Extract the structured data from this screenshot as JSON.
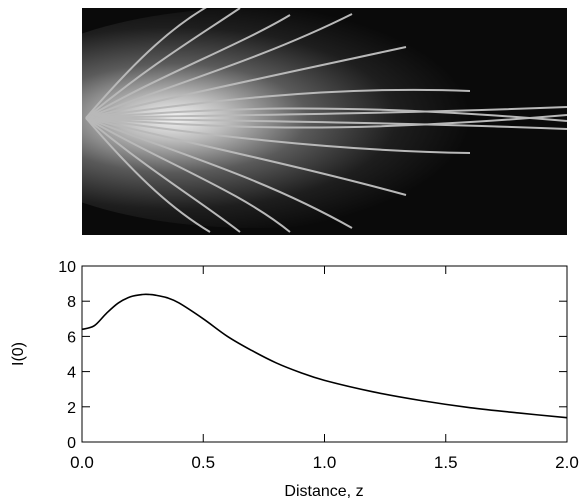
{
  "image_panel": {
    "description_colormap": "grayscale",
    "ray_count": 16
  },
  "chart_data": {
    "type": "line",
    "title": "",
    "xlabel": "Distance, z",
    "ylabel": "I(0)",
    "xlim": [
      0,
      2
    ],
    "ylim": [
      0,
      10
    ],
    "x_ticks": [
      "0.0",
      "0.5",
      "1.0",
      "1.5",
      "2.0"
    ],
    "y_ticks": [
      "0",
      "2",
      "4",
      "6",
      "8",
      "10"
    ],
    "grid": false,
    "series": [
      {
        "x": [
          0.0,
          0.05,
          0.1,
          0.15,
          0.2,
          0.25,
          0.28,
          0.3,
          0.35,
          0.4,
          0.5,
          0.6,
          0.7,
          0.8,
          0.9,
          1.0,
          1.2,
          1.4,
          1.6,
          1.8,
          2.0
        ],
        "values": [
          6.4,
          6.6,
          7.3,
          7.9,
          8.25,
          8.38,
          8.38,
          8.35,
          8.2,
          7.9,
          7.0,
          6.0,
          5.2,
          4.5,
          3.95,
          3.5,
          2.85,
          2.35,
          1.95,
          1.65,
          1.38
        ],
        "color": "#000000"
      }
    ]
  }
}
